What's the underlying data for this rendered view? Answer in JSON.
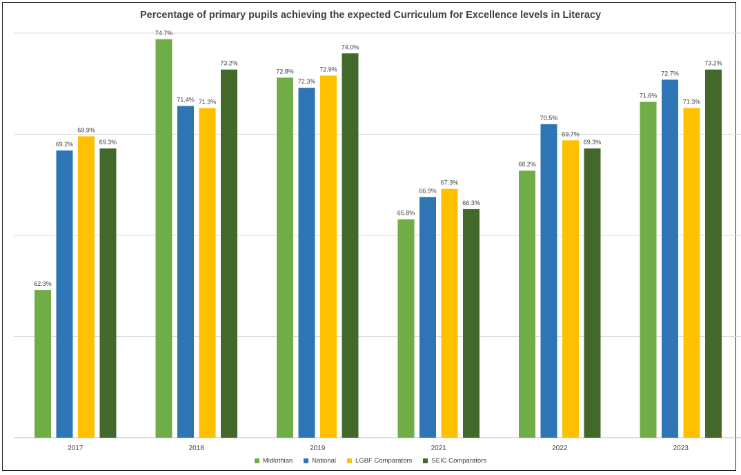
{
  "chart_data": {
    "type": "bar",
    "title": "Percentage of primary pupils achieving the expected Curriculum for Excellence levels in Literacy",
    "xlabel": "",
    "ylabel": "",
    "categories": [
      "2017",
      "2018",
      "2019",
      "2021",
      "2022",
      "2023"
    ],
    "series": [
      {
        "name": "Midlothian",
        "color": "#70ad47",
        "values": [
          62.3,
          74.7,
          72.8,
          65.8,
          68.2,
          71.6
        ],
        "labels": [
          "62.3%",
          "74.7%",
          "72.8%",
          "65.8%",
          "68.2%",
          "71.6%"
        ]
      },
      {
        "name": "National",
        "color": "#2e75b6",
        "values": [
          69.2,
          71.4,
          72.3,
          66.9,
          70.5,
          72.7
        ],
        "labels": [
          "69.2%",
          "71.4%",
          "72.3%",
          "66.9%",
          "70.5%",
          "72.7%"
        ]
      },
      {
        "name": "LGBF Comparators",
        "color": "#ffc000",
        "values": [
          69.9,
          71.3,
          72.9,
          67.3,
          69.7,
          71.3
        ],
        "labels": [
          "69.9%",
          "71.3%",
          "72.9%",
          "67.3%",
          "69.7%",
          "71.3%"
        ]
      },
      {
        "name": "SEIC Comparators",
        "color": "#43682b",
        "values": [
          69.3,
          73.2,
          74.0,
          66.3,
          69.3,
          73.2
        ],
        "labels": [
          "69.3%",
          "73.2%",
          "74.0%",
          "66.3%",
          "69.3%",
          "73.2%"
        ]
      }
    ],
    "ylim": [
      55,
      75
    ],
    "grid": true,
    "y_tick_labels_shown": false,
    "legend_position": "bottom",
    "gridline_color": "#d9d9d9",
    "axis_color": "#bfbfbf",
    "text_color": "#404040"
  }
}
